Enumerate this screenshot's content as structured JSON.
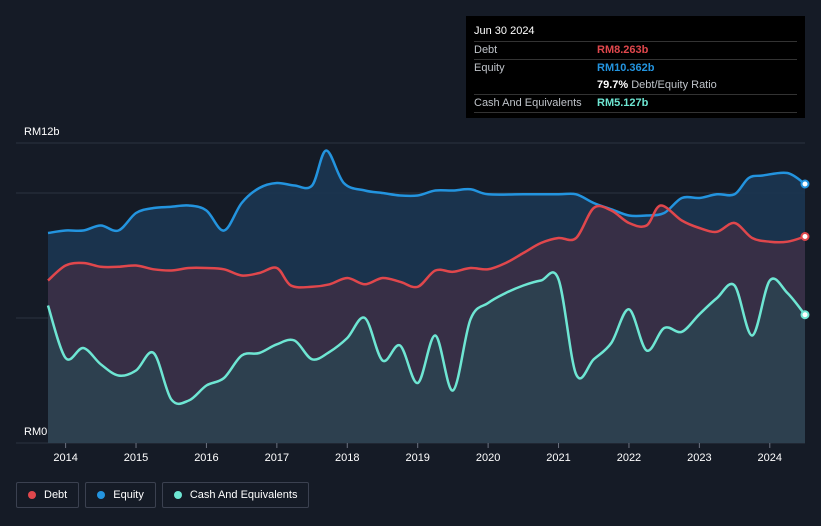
{
  "tooltip": {
    "date": "Jun 30 2024",
    "debt_label": "Debt",
    "debt_value": "RM8.263b",
    "equity_label": "Equity",
    "equity_value": "RM10.362b",
    "ratio_value": "79.7%",
    "ratio_label": "Debt/Equity Ratio",
    "cash_label": "Cash And Equivalents",
    "cash_value": "RM5.127b"
  },
  "legend": [
    {
      "label": "Debt",
      "color": "#e0474c"
    },
    {
      "label": "Equity",
      "color": "#2394df"
    },
    {
      "label": "Cash And Equivalents",
      "color": "#6ee6d3"
    }
  ],
  "colors": {
    "debt": "#e0474c",
    "equity": "#2394df",
    "cash": "#6ee6d3",
    "equity_fill": "#1b3550",
    "debt_fill": "#3a2f45",
    "cash_fill": "#2c4250",
    "background": "#151b26"
  },
  "chart_data": {
    "type": "area",
    "title": "",
    "y_top_label": "RM12b",
    "y_bottom_label": "RM0",
    "ylim": [
      0,
      12
    ],
    "xlim": [
      2013.75,
      2024.5
    ],
    "x_ticks": [
      "2014",
      "2015",
      "2016",
      "2017",
      "2018",
      "2019",
      "2020",
      "2021",
      "2022",
      "2023",
      "2024"
    ],
    "x_tick_values": [
      2014,
      2015,
      2016,
      2017,
      2018,
      2019,
      2020,
      2021,
      2022,
      2023,
      2024
    ],
    "series": [
      {
        "name": "Equity",
        "points": [
          [
            2013.75,
            8.4
          ],
          [
            2014.0,
            8.5
          ],
          [
            2014.25,
            8.5
          ],
          [
            2014.5,
            8.7
          ],
          [
            2014.75,
            8.5
          ],
          [
            2015.0,
            9.2
          ],
          [
            2015.25,
            9.4
          ],
          [
            2015.5,
            9.45
          ],
          [
            2015.75,
            9.5
          ],
          [
            2016.0,
            9.3
          ],
          [
            2016.25,
            8.5
          ],
          [
            2016.5,
            9.6
          ],
          [
            2016.75,
            10.2
          ],
          [
            2017.0,
            10.4
          ],
          [
            2017.25,
            10.3
          ],
          [
            2017.5,
            10.3
          ],
          [
            2017.7,
            11.7
          ],
          [
            2017.95,
            10.4
          ],
          [
            2018.25,
            10.1
          ],
          [
            2018.5,
            10.0
          ],
          [
            2018.75,
            9.9
          ],
          [
            2019.0,
            9.9
          ],
          [
            2019.25,
            10.1
          ],
          [
            2019.5,
            10.1
          ],
          [
            2019.75,
            10.15
          ],
          [
            2020.0,
            9.95
          ],
          [
            2020.5,
            9.95
          ],
          [
            2021.0,
            9.95
          ],
          [
            2021.25,
            9.95
          ],
          [
            2021.5,
            9.6
          ],
          [
            2021.75,
            9.35
          ],
          [
            2022.0,
            9.1
          ],
          [
            2022.25,
            9.1
          ],
          [
            2022.5,
            9.2
          ],
          [
            2022.75,
            9.8
          ],
          [
            2023.0,
            9.8
          ],
          [
            2023.25,
            9.95
          ],
          [
            2023.5,
            9.95
          ],
          [
            2023.7,
            10.6
          ],
          [
            2023.9,
            10.7
          ],
          [
            2024.25,
            10.8
          ],
          [
            2024.5,
            10.36
          ]
        ]
      },
      {
        "name": "Debt",
        "points": [
          [
            2013.75,
            6.5
          ],
          [
            2014.0,
            7.1
          ],
          [
            2014.25,
            7.2
          ],
          [
            2014.5,
            7.05
          ],
          [
            2014.75,
            7.05
          ],
          [
            2015.0,
            7.1
          ],
          [
            2015.25,
            6.95
          ],
          [
            2015.5,
            6.9
          ],
          [
            2015.75,
            7.0
          ],
          [
            2016.0,
            7.0
          ],
          [
            2016.25,
            6.95
          ],
          [
            2016.5,
            6.7
          ],
          [
            2016.75,
            6.8
          ],
          [
            2017.0,
            7.0
          ],
          [
            2017.2,
            6.3
          ],
          [
            2017.5,
            6.25
          ],
          [
            2017.75,
            6.35
          ],
          [
            2018.0,
            6.6
          ],
          [
            2018.25,
            6.35
          ],
          [
            2018.5,
            6.6
          ],
          [
            2018.75,
            6.45
          ],
          [
            2019.0,
            6.25
          ],
          [
            2019.25,
            6.9
          ],
          [
            2019.5,
            6.85
          ],
          [
            2019.75,
            7.0
          ],
          [
            2020.0,
            6.95
          ],
          [
            2020.25,
            7.2
          ],
          [
            2020.5,
            7.6
          ],
          [
            2020.75,
            8.0
          ],
          [
            2021.0,
            8.2
          ],
          [
            2021.25,
            8.2
          ],
          [
            2021.5,
            9.4
          ],
          [
            2021.75,
            9.3
          ],
          [
            2022.0,
            8.8
          ],
          [
            2022.25,
            8.7
          ],
          [
            2022.45,
            9.5
          ],
          [
            2022.75,
            8.9
          ],
          [
            2023.0,
            8.6
          ],
          [
            2023.25,
            8.45
          ],
          [
            2023.5,
            8.8
          ],
          [
            2023.75,
            8.2
          ],
          [
            2024.0,
            8.05
          ],
          [
            2024.25,
            8.05
          ],
          [
            2024.5,
            8.26
          ]
        ]
      },
      {
        "name": "Cash And Equivalents",
        "points": [
          [
            2013.75,
            5.5
          ],
          [
            2014.0,
            3.4
          ],
          [
            2014.25,
            3.8
          ],
          [
            2014.5,
            3.15
          ],
          [
            2014.75,
            2.7
          ],
          [
            2015.0,
            2.9
          ],
          [
            2015.25,
            3.6
          ],
          [
            2015.5,
            1.75
          ],
          [
            2015.75,
            1.7
          ],
          [
            2016.0,
            2.3
          ],
          [
            2016.25,
            2.6
          ],
          [
            2016.5,
            3.5
          ],
          [
            2016.75,
            3.6
          ],
          [
            2017.0,
            3.95
          ],
          [
            2017.25,
            4.1
          ],
          [
            2017.5,
            3.35
          ],
          [
            2017.75,
            3.65
          ],
          [
            2018.0,
            4.2
          ],
          [
            2018.25,
            5.0
          ],
          [
            2018.5,
            3.3
          ],
          [
            2018.75,
            3.9
          ],
          [
            2019.0,
            2.4
          ],
          [
            2019.25,
            4.3
          ],
          [
            2019.5,
            2.1
          ],
          [
            2019.75,
            4.95
          ],
          [
            2020.0,
            5.6
          ],
          [
            2020.25,
            6.0
          ],
          [
            2020.5,
            6.3
          ],
          [
            2020.75,
            6.5
          ],
          [
            2021.0,
            6.55
          ],
          [
            2021.25,
            2.75
          ],
          [
            2021.5,
            3.35
          ],
          [
            2021.75,
            4.0
          ],
          [
            2022.0,
            5.35
          ],
          [
            2022.25,
            3.7
          ],
          [
            2022.5,
            4.6
          ],
          [
            2022.75,
            4.45
          ],
          [
            2023.0,
            5.15
          ],
          [
            2023.25,
            5.8
          ],
          [
            2023.5,
            6.3
          ],
          [
            2023.75,
            4.3
          ],
          [
            2024.0,
            6.5
          ],
          [
            2024.25,
            6.0
          ],
          [
            2024.5,
            5.13
          ]
        ]
      }
    ]
  }
}
